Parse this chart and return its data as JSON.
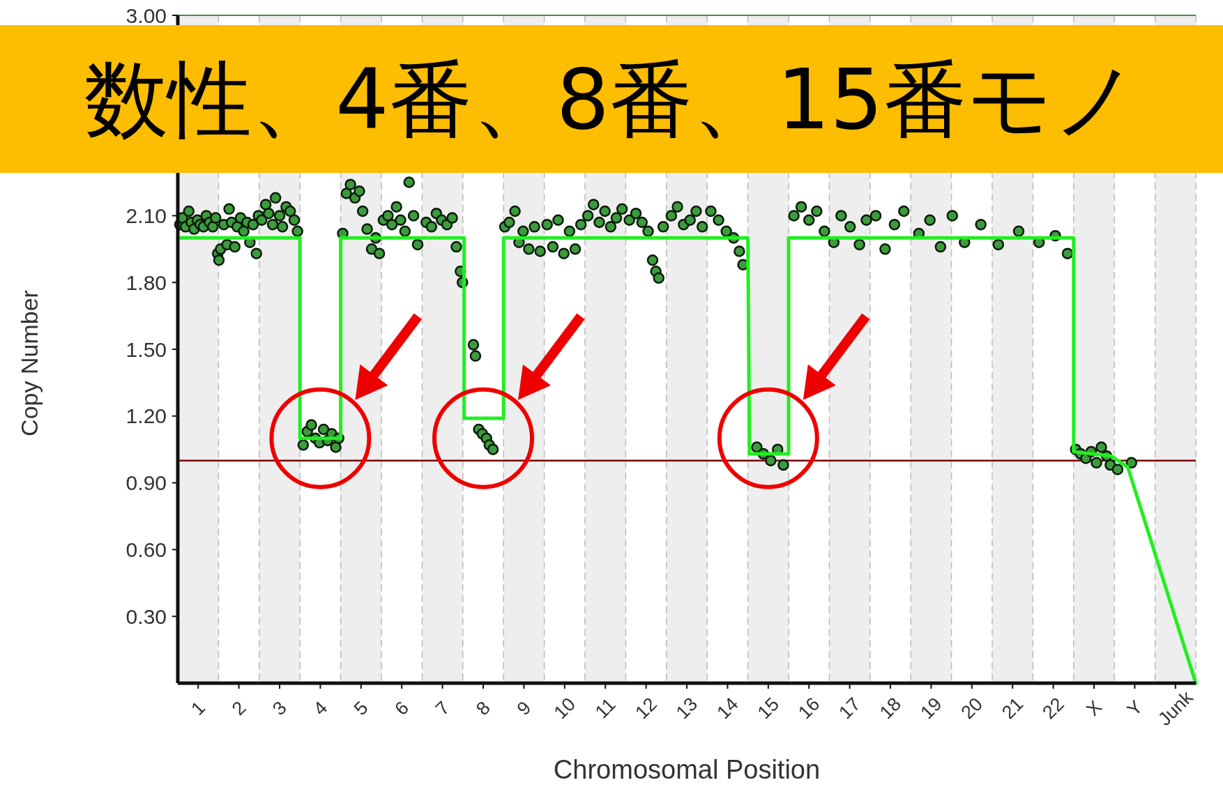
{
  "chart_data": {
    "type": "scatter",
    "title": "数性、4番、8番、15番モノ",
    "xlabel": "Chromosomal Position",
    "ylabel": "Copy Number",
    "xlim": [
      0.5,
      25.5
    ],
    "ylim": [
      0,
      3
    ],
    "xticks": [
      1,
      2,
      3,
      4,
      5,
      6,
      7,
      8,
      9,
      10,
      11,
      12,
      13,
      14,
      15,
      16,
      17,
      18,
      19,
      20,
      21,
      22,
      {
        "value": 23,
        "label": "X"
      },
      {
        "value": 24,
        "label": "Y"
      },
      {
        "value": 25,
        "label": "Junk"
      }
    ],
    "yticks": [
      {
        "value": 0.3,
        "label": "0.30"
      },
      {
        "value": 0.6,
        "label": "0.60"
      },
      {
        "value": 0.9,
        "label": "0.90"
      },
      {
        "value": 1.2,
        "label": "1.20"
      },
      {
        "value": 1.5,
        "label": "1.50"
      },
      {
        "value": 1.8,
        "label": "1.80"
      },
      {
        "value": 2.1,
        "label": "2.10"
      },
      {
        "value": 3,
        "label": "3.00"
      }
    ],
    "line_style": "solid",
    "series": [
      {
        "type": "scatter",
        "marker": "circle",
        "color": "#3c9b3c",
        "x": [
          0.55,
          0.61,
          0.69,
          0.77,
          0.83,
          0.9,
          0.98,
          1.05,
          1.13,
          1.2,
          1.28,
          1.36,
          1.43,
          1.48,
          1.51,
          1.55,
          1.63,
          1.71,
          1.76,
          1.82,
          1.9,
          1.96,
          2.04,
          2.12,
          2.2,
          2.27,
          2.35,
          2.43,
          2.48,
          2.56,
          2.66,
          2.73,
          2.83,
          2.9,
          3.0,
          3.07,
          3.16,
          3.26,
          3.36,
          3.44,
          3.58,
          3.68,
          3.78,
          3.88,
          3.98,
          4.08,
          4.18,
          4.28,
          4.38,
          4.45,
          4.55,
          4.64,
          4.74,
          4.85,
          4.96,
          5.04,
          5.15,
          5.26,
          5.36,
          5.45,
          5.55,
          5.66,
          5.76,
          5.87,
          5.97,
          6.08,
          6.18,
          6.29,
          6.39,
          6.6,
          6.73,
          6.85,
          6.98,
          7.11,
          7.24,
          7.34,
          7.44,
          7.49,
          7.76,
          7.81,
          7.89,
          7.98,
          8.08,
          8.15,
          8.24,
          8.53,
          8.64,
          8.78,
          8.88,
          8.98,
          9.12,
          9.26,
          9.4,
          9.57,
          9.71,
          9.84,
          9.98,
          10.12,
          10.26,
          10.4,
          10.57,
          10.71,
          10.85,
          10.99,
          11.13,
          11.27,
          11.41,
          11.59,
          11.75,
          11.9,
          12.05,
          12.16,
          12.24,
          12.31,
          12.42,
          12.62,
          12.77,
          12.92,
          13.08,
          13.23,
          13.38,
          13.59,
          13.78,
          13.97,
          14.15,
          14.29,
          14.38,
          14.72,
          14.88,
          15.06,
          15.23,
          15.37,
          15.63,
          15.81,
          16.0,
          16.19,
          16.38,
          16.61,
          16.79,
          17.01,
          17.24,
          17.41,
          17.64,
          17.87,
          18.1,
          18.33,
          18.7,
          18.97,
          19.23,
          19.52,
          19.82,
          20.22,
          20.65,
          21.15,
          21.65,
          22.05,
          22.35,
          22.55,
          22.67,
          22.8,
          22.93,
          23.06,
          23.18,
          23.31,
          23.4,
          23.58,
          23.92
        ],
        "values": [
          2.06,
          2.09,
          2.05,
          2.12,
          2.07,
          2.04,
          2.08,
          2.06,
          2.05,
          2.1,
          2.07,
          2.05,
          2.09,
          1.93,
          1.9,
          1.95,
          2.06,
          1.97,
          2.13,
          2.07,
          1.96,
          2.05,
          2.09,
          2.03,
          2.07,
          1.98,
          2.06,
          1.93,
          2.1,
          2.08,
          2.15,
          2.11,
          2.06,
          2.18,
          2.1,
          2.05,
          2.14,
          2.12,
          2.08,
          2.03,
          1.07,
          1.13,
          1.16,
          1.1,
          1.08,
          1.14,
          1.09,
          1.12,
          1.06,
          1.1,
          2.02,
          2.2,
          2.24,
          2.18,
          2.21,
          2.12,
          2.04,
          1.95,
          2.0,
          1.93,
          2.08,
          2.1,
          2.06,
          2.14,
          2.08,
          2.03,
          2.25,
          2.1,
          1.97,
          2.07,
          2.05,
          2.11,
          2.08,
          2.06,
          2.09,
          1.96,
          1.85,
          1.8,
          1.52,
          1.47,
          1.14,
          1.12,
          1.1,
          1.07,
          1.05,
          2.05,
          2.07,
          2.12,
          1.98,
          2.03,
          1.95,
          2.05,
          1.94,
          2.06,
          1.96,
          2.08,
          1.93,
          2.03,
          1.95,
          2.06,
          2.1,
          2.15,
          2.07,
          2.12,
          2.05,
          2.09,
          2.13,
          2.08,
          2.11,
          2.07,
          2.03,
          1.9,
          1.85,
          1.82,
          2.05,
          2.1,
          2.14,
          2.06,
          2.08,
          2.12,
          2.05,
          2.12,
          2.08,
          2.03,
          2.0,
          1.94,
          1.88,
          1.06,
          1.03,
          1.0,
          1.05,
          0.98,
          2.1,
          2.14,
          2.08,
          2.12,
          2.03,
          1.98,
          2.1,
          2.05,
          1.97,
          2.08,
          2.1,
          1.95,
          2.06,
          2.12,
          2.02,
          2.08,
          1.96,
          2.1,
          1.98,
          2.06,
          1.97,
          2.03,
          1.98,
          2.01,
          1.93,
          1.05,
          1.03,
          1.01,
          1.04,
          0.99,
          1.06,
          1.02,
          0.98,
          0.96,
          0.99
        ]
      },
      {
        "type": "line",
        "marker": "none",
        "color": "#22ee22",
        "x": [
          0.5,
          3.5,
          3.5,
          4.5,
          4.5,
          7.53,
          7.53,
          8.5,
          8.5,
          14.5,
          14.54,
          15.5,
          15.5,
          22.5,
          22.5,
          23.42,
          23.83,
          25.5
        ],
        "values": [
          2.0,
          2.0,
          1.1,
          1.1,
          2.0,
          2.0,
          1.19,
          1.19,
          2.0,
          2.0,
          1.03,
          1.03,
          2.0,
          2.0,
          1.04,
          1.02,
          0.97,
          0
        ]
      }
    ],
    "ref_lines": [
      {
        "axis": "y",
        "value": 1,
        "color": "#800000"
      }
    ],
    "bands": [
      {
        "axis": "x",
        "from": 0.5,
        "to": 1.5,
        "color": "#eeeeee"
      },
      {
        "axis": "x",
        "from": 2.5,
        "to": 3.5,
        "color": "#eeeeee"
      },
      {
        "axis": "x",
        "from": 4.5,
        "to": 5.5,
        "color": "#eeeeee"
      },
      {
        "axis": "x",
        "from": 6.5,
        "to": 7.5,
        "color": "#eeeeee"
      },
      {
        "axis": "x",
        "from": 8.5,
        "to": 9.5,
        "color": "#eeeeee"
      },
      {
        "axis": "x",
        "from": 10.5,
        "to": 11.5,
        "color": "#eeeeee"
      },
      {
        "axis": "x",
        "from": 12.5,
        "to": 13.5,
        "color": "#eeeeee"
      },
      {
        "axis": "x",
        "from": 14.5,
        "to": 15.5,
        "color": "#eeeeee"
      },
      {
        "axis": "x",
        "from": 16.5,
        "to": 17.5,
        "color": "#eeeeee"
      },
      {
        "axis": "x",
        "from": 18.5,
        "to": 19.5,
        "color": "#eeeeee"
      },
      {
        "axis": "x",
        "from": 20.5,
        "to": 21.5,
        "color": "#eeeeee"
      },
      {
        "axis": "x",
        "from": 22.5,
        "to": 23.5,
        "color": "#eeeeee"
      },
      {
        "axis": "x",
        "from": 24.5,
        "to": 25.5,
        "color": "#eeeeee"
      }
    ]
  }
}
